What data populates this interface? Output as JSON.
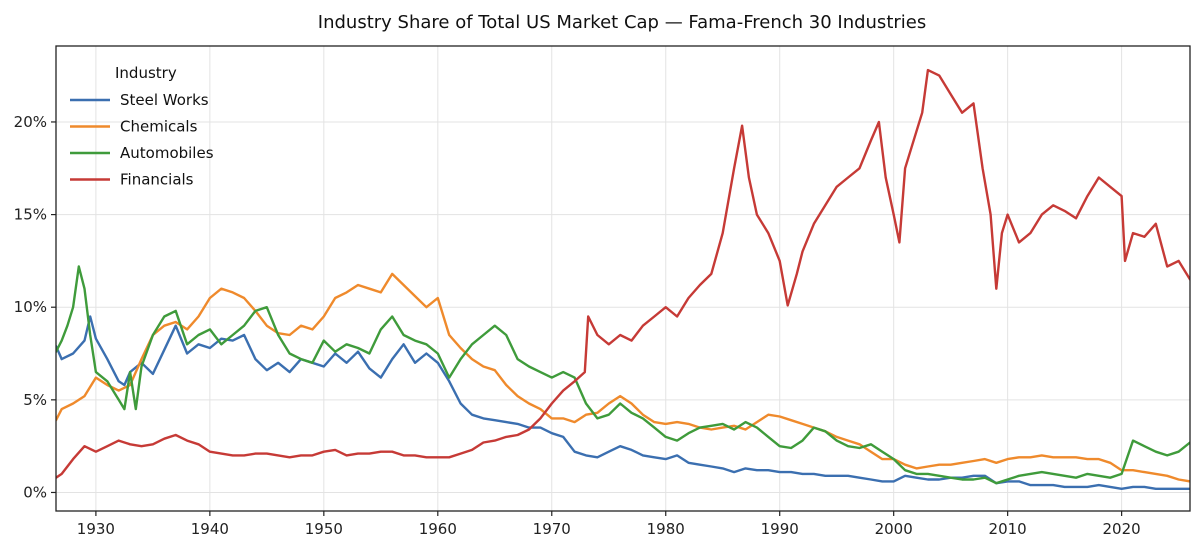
{
  "chart_data": {
    "type": "line",
    "title": "Industry Share of Total US Market Cap — Fama-French 30 Industries",
    "xlabel": "",
    "ylabel": "",
    "xlim": [
      1926.5,
      2026.0
    ],
    "ylim": [
      -0.01,
      0.241
    ],
    "grid": true,
    "legend_title": "Industry",
    "legend_position": "top-left",
    "x_ticks": [
      1930,
      1940,
      1950,
      1960,
      1970,
      1980,
      1990,
      2000,
      2010,
      2020
    ],
    "x_tick_labels": [
      "1930",
      "1940",
      "1950",
      "1960",
      "1970",
      "1980",
      "1990",
      "2000",
      "2010",
      "2020"
    ],
    "y_ticks": [
      0,
      0.05,
      0.1,
      0.15,
      0.2
    ],
    "y_tick_labels": [
      "0%",
      "5%",
      "10%",
      "15%",
      "20%"
    ],
    "series": [
      {
        "name": "Steel Works",
        "color": "#3b6fb0",
        "x": [
          1926.5,
          1927,
          1928,
          1929,
          1929.5,
          1930,
          1931,
          1932,
          1932.5,
          1933,
          1934,
          1935,
          1936,
          1937,
          1938,
          1939,
          1940,
          1941,
          1942,
          1943,
          1944,
          1945,
          1946,
          1947,
          1948,
          1949,
          1950,
          1951,
          1952,
          1953,
          1954,
          1955,
          1956,
          1957,
          1958,
          1959,
          1960,
          1961,
          1962,
          1963,
          1964,
          1965,
          1966,
          1967,
          1968,
          1969,
          1970,
          1971,
          1972,
          1973,
          1974,
          1975,
          1976,
          1977,
          1978,
          1979,
          1980,
          1981,
          1982,
          1983,
          1984,
          1985,
          1986,
          1987,
          1988,
          1989,
          1990,
          1991,
          1992,
          1993,
          1994,
          1995,
          1996,
          1997,
          1998,
          1999,
          2000,
          2001,
          2002,
          2003,
          2004,
          2005,
          2006,
          2007,
          2008,
          2009,
          2010,
          2011,
          2012,
          2013,
          2014,
          2015,
          2016,
          2017,
          2018,
          2019,
          2020,
          2021,
          2022,
          2023,
          2024,
          2025,
          2026
        ],
        "values": [
          0.079,
          0.072,
          0.075,
          0.082,
          0.095,
          0.083,
          0.072,
          0.06,
          0.058,
          0.065,
          0.07,
          0.064,
          0.077,
          0.09,
          0.075,
          0.08,
          0.078,
          0.083,
          0.082,
          0.085,
          0.072,
          0.066,
          0.07,
          0.065,
          0.072,
          0.07,
          0.068,
          0.075,
          0.07,
          0.076,
          0.067,
          0.062,
          0.072,
          0.08,
          0.07,
          0.075,
          0.07,
          0.06,
          0.048,
          0.042,
          0.04,
          0.039,
          0.038,
          0.037,
          0.035,
          0.035,
          0.032,
          0.03,
          0.022,
          0.02,
          0.019,
          0.022,
          0.025,
          0.023,
          0.02,
          0.019,
          0.018,
          0.02,
          0.016,
          0.015,
          0.014,
          0.013,
          0.011,
          0.013,
          0.012,
          0.012,
          0.011,
          0.011,
          0.01,
          0.01,
          0.009,
          0.009,
          0.009,
          0.008,
          0.007,
          0.006,
          0.006,
          0.009,
          0.008,
          0.007,
          0.007,
          0.008,
          0.008,
          0.009,
          0.009,
          0.005,
          0.006,
          0.006,
          0.004,
          0.004,
          0.004,
          0.003,
          0.003,
          0.003,
          0.004,
          0.003,
          0.002,
          0.003,
          0.003,
          0.002,
          0.002,
          0.002,
          0.002
        ]
      },
      {
        "name": "Chemicals",
        "color": "#ef8a2c",
        "x": [
          1926.5,
          1927,
          1928,
          1929,
          1930,
          1931,
          1932,
          1933,
          1934,
          1935,
          1936,
          1937,
          1938,
          1939,
          1940,
          1941,
          1942,
          1943,
          1944,
          1945,
          1946,
          1947,
          1948,
          1949,
          1950,
          1951,
          1952,
          1953,
          1954,
          1955,
          1956,
          1957,
          1958,
          1959,
          1960,
          1961,
          1962,
          1963,
          1964,
          1965,
          1966,
          1967,
          1968,
          1969,
          1970,
          1971,
          1972,
          1973,
          1974,
          1975,
          1976,
          1977,
          1978,
          1979,
          1980,
          1981,
          1982,
          1983,
          1984,
          1985,
          1986,
          1987,
          1988,
          1989,
          1990,
          1991,
          1992,
          1993,
          1994,
          1995,
          1996,
          1997,
          1998,
          1999,
          2000,
          2001,
          2002,
          2003,
          2004,
          2005,
          2006,
          2007,
          2008,
          2009,
          2010,
          2011,
          2012,
          2013,
          2014,
          2015,
          2016,
          2017,
          2018,
          2019,
          2020,
          2021,
          2022,
          2023,
          2024,
          2025,
          2026
        ],
        "values": [
          0.039,
          0.045,
          0.048,
          0.052,
          0.062,
          0.058,
          0.055,
          0.058,
          0.072,
          0.085,
          0.09,
          0.092,
          0.088,
          0.095,
          0.105,
          0.11,
          0.108,
          0.105,
          0.098,
          0.09,
          0.086,
          0.085,
          0.09,
          0.088,
          0.095,
          0.105,
          0.108,
          0.112,
          0.11,
          0.108,
          0.118,
          0.112,
          0.106,
          0.1,
          0.105,
          0.085,
          0.078,
          0.072,
          0.068,
          0.066,
          0.058,
          0.052,
          0.048,
          0.045,
          0.04,
          0.04,
          0.038,
          0.042,
          0.043,
          0.048,
          0.052,
          0.048,
          0.042,
          0.038,
          0.037,
          0.038,
          0.037,
          0.035,
          0.034,
          0.035,
          0.036,
          0.034,
          0.038,
          0.042,
          0.041,
          0.039,
          0.037,
          0.035,
          0.033,
          0.03,
          0.028,
          0.026,
          0.022,
          0.018,
          0.018,
          0.015,
          0.013,
          0.014,
          0.015,
          0.015,
          0.016,
          0.017,
          0.018,
          0.016,
          0.018,
          0.019,
          0.019,
          0.02,
          0.019,
          0.019,
          0.019,
          0.018,
          0.018,
          0.016,
          0.012,
          0.012,
          0.011,
          0.01,
          0.009,
          0.007,
          0.006
        ]
      },
      {
        "name": "Automobiles",
        "color": "#3f9b3b",
        "x": [
          1926.5,
          1927,
          1927.5,
          1928,
          1928.5,
          1929,
          1929.5,
          1930,
          1931,
          1932,
          1932.5,
          1933,
          1933.5,
          1934,
          1935,
          1936,
          1937,
          1938,
          1939,
          1940,
          1941,
          1942,
          1943,
          1944,
          1945,
          1946,
          1947,
          1948,
          1949,
          1950,
          1951,
          1952,
          1953,
          1954,
          1955,
          1956,
          1957,
          1958,
          1959,
          1960,
          1961,
          1962,
          1963,
          1964,
          1965,
          1966,
          1967,
          1968,
          1969,
          1970,
          1971,
          1972,
          1973,
          1974,
          1975,
          1976,
          1977,
          1978,
          1979,
          1980,
          1981,
          1982,
          1983,
          1984,
          1985,
          1986,
          1987,
          1988,
          1989,
          1990,
          1991,
          1992,
          1993,
          1994,
          1995,
          1996,
          1997,
          1998,
          1999,
          2000,
          2001,
          2002,
          2003,
          2004,
          2005,
          2006,
          2007,
          2008,
          2009,
          2010,
          2011,
          2012,
          2013,
          2014,
          2015,
          2016,
          2017,
          2018,
          2019,
          2020,
          2021,
          2022,
          2023,
          2024,
          2025,
          2026
        ],
        "values": [
          0.076,
          0.082,
          0.09,
          0.1,
          0.122,
          0.11,
          0.085,
          0.065,
          0.06,
          0.05,
          0.045,
          0.065,
          0.045,
          0.068,
          0.085,
          0.095,
          0.098,
          0.08,
          0.085,
          0.088,
          0.08,
          0.085,
          0.09,
          0.098,
          0.1,
          0.085,
          0.075,
          0.072,
          0.07,
          0.082,
          0.076,
          0.08,
          0.078,
          0.075,
          0.088,
          0.095,
          0.085,
          0.082,
          0.08,
          0.075,
          0.062,
          0.072,
          0.08,
          0.085,
          0.09,
          0.085,
          0.072,
          0.068,
          0.065,
          0.062,
          0.065,
          0.062,
          0.048,
          0.04,
          0.042,
          0.048,
          0.043,
          0.04,
          0.035,
          0.03,
          0.028,
          0.032,
          0.035,
          0.036,
          0.037,
          0.034,
          0.038,
          0.035,
          0.03,
          0.025,
          0.024,
          0.028,
          0.035,
          0.033,
          0.028,
          0.025,
          0.024,
          0.026,
          0.022,
          0.018,
          0.012,
          0.01,
          0.01,
          0.009,
          0.008,
          0.007,
          0.007,
          0.008,
          0.005,
          0.007,
          0.009,
          0.01,
          0.011,
          0.01,
          0.009,
          0.008,
          0.01,
          0.009,
          0.008,
          0.01,
          0.028,
          0.025,
          0.022,
          0.02,
          0.022,
          0.027
        ]
      },
      {
        "name": "Financials",
        "color": "#c63a36",
        "x": [
          1926.5,
          1927,
          1928,
          1929,
          1930,
          1931,
          1932,
          1933,
          1934,
          1935,
          1936,
          1937,
          1938,
          1939,
          1940,
          1941,
          1942,
          1943,
          1944,
          1945,
          1946,
          1947,
          1948,
          1949,
          1950,
          1951,
          1952,
          1953,
          1954,
          1955,
          1956,
          1957,
          1958,
          1959,
          1960,
          1961,
          1962,
          1963,
          1964,
          1965,
          1966,
          1967,
          1968,
          1969,
          1970,
          1971,
          1972,
          1972.9,
          1973.2,
          1974,
          1975,
          1976,
          1977,
          1978,
          1979,
          1980,
          1981,
          1982,
          1983,
          1984,
          1985,
          1986,
          1986.7,
          1987.3,
          1988,
          1989,
          1990,
          1990.7,
          1991.5,
          1992,
          1993,
          1994,
          1995,
          1996,
          1997,
          1998,
          1998.7,
          1999.3,
          2000,
          2000.5,
          2001,
          2002,
          2002.5,
          2003,
          2004,
          2005,
          2006,
          2007,
          2007.8,
          2008.5,
          2009,
          2009.5,
          2010,
          2011,
          2012,
          2013,
          2014,
          2015,
          2016,
          2017,
          2018,
          2019,
          2020,
          2020.3,
          2021,
          2022,
          2023,
          2024,
          2025,
          2026
        ],
        "values": [
          0.008,
          0.01,
          0.018,
          0.025,
          0.022,
          0.025,
          0.028,
          0.026,
          0.025,
          0.026,
          0.029,
          0.031,
          0.028,
          0.026,
          0.022,
          0.021,
          0.02,
          0.02,
          0.021,
          0.021,
          0.02,
          0.019,
          0.02,
          0.02,
          0.022,
          0.023,
          0.02,
          0.021,
          0.021,
          0.022,
          0.022,
          0.02,
          0.02,
          0.019,
          0.019,
          0.019,
          0.021,
          0.023,
          0.027,
          0.028,
          0.03,
          0.031,
          0.034,
          0.04,
          0.048,
          0.055,
          0.06,
          0.065,
          0.095,
          0.085,
          0.08,
          0.085,
          0.082,
          0.09,
          0.095,
          0.1,
          0.095,
          0.105,
          0.112,
          0.118,
          0.14,
          0.175,
          0.198,
          0.17,
          0.15,
          0.14,
          0.125,
          0.101,
          0.118,
          0.13,
          0.145,
          0.155,
          0.165,
          0.17,
          0.175,
          0.19,
          0.2,
          0.17,
          0.15,
          0.135,
          0.175,
          0.195,
          0.205,
          0.228,
          0.225,
          0.215,
          0.205,
          0.21,
          0.175,
          0.15,
          0.11,
          0.14,
          0.15,
          0.135,
          0.14,
          0.15,
          0.155,
          0.152,
          0.148,
          0.16,
          0.17,
          0.165,
          0.16,
          0.125,
          0.14,
          0.138,
          0.145,
          0.122,
          0.125,
          0.115
        ]
      }
    ]
  }
}
